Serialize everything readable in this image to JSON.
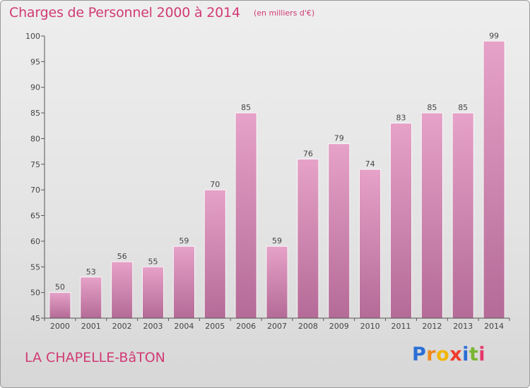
{
  "chart_data": {
    "type": "bar",
    "title": "Charges de Personnel 2000 à 2014",
    "subtitle": "(en milliers d'€)",
    "categories": [
      "2000",
      "2001",
      "2002",
      "2003",
      "2004",
      "2005",
      "2006",
      "2007",
      "2008",
      "2009",
      "2010",
      "2011",
      "2012",
      "2013",
      "2014"
    ],
    "values": [
      50,
      53,
      56,
      55,
      59,
      70,
      85,
      59,
      76,
      79,
      74,
      83,
      85,
      85,
      99
    ],
    "xlabel": "",
    "ylabel": "",
    "ylim": [
      45,
      100
    ],
    "yticks": [
      45,
      50,
      55,
      60,
      65,
      70,
      75,
      80,
      85,
      90,
      95,
      100
    ],
    "grid": false,
    "bar_color": "#d97fae"
  },
  "footer": {
    "commune": "LA CHAPELLE-BâTON",
    "logo_text": "Proxiti",
    "logo_colors": [
      "#2b6fd6",
      "#ef8a1e",
      "#f2b705",
      "#ef3b2c",
      "#2b6fd6",
      "#79b532",
      "#e5396b"
    ]
  }
}
